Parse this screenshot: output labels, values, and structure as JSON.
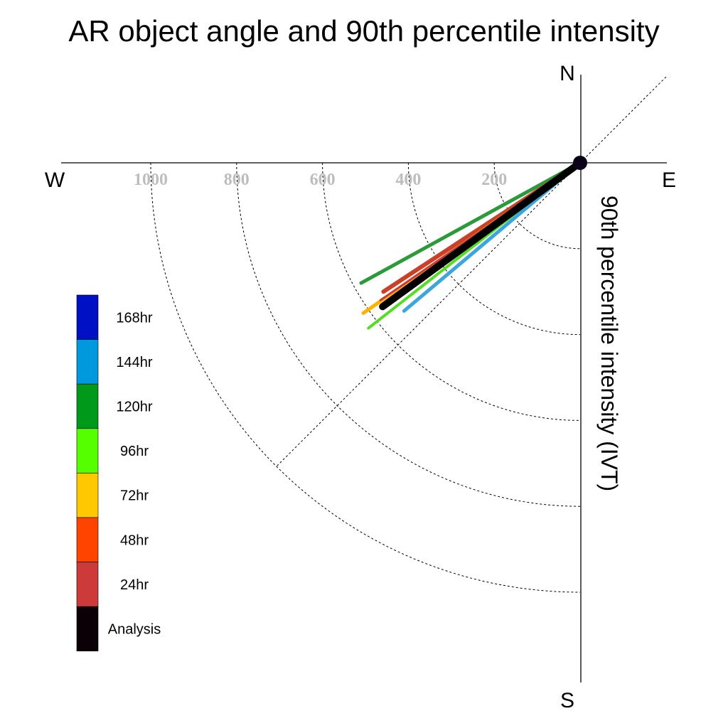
{
  "chart_data": {
    "type": "polar-vector",
    "title": "AR object angle and 90th percentile intensity",
    "axis_label": "90th percentile intensity (IVT)",
    "compass": {
      "north": "N",
      "south": "S",
      "east": "E",
      "west": "W"
    },
    "radial_ticks": [
      200,
      400,
      600,
      800,
      1000
    ],
    "rlim": [
      0,
      1000
    ],
    "grid": true,
    "legend_position": "left",
    "legend": [
      {
        "label": "168hr",
        "color": "#0010c4"
      },
      {
        "label": "144hr",
        "color": "#0099dd"
      },
      {
        "label": "120hr",
        "color": "#00991a"
      },
      {
        "label": "96hr",
        "color": "#55ff00"
      },
      {
        "label": "72hr",
        "color": "#ffc800"
      },
      {
        "label": "48hr",
        "color": "#ff4400"
      },
      {
        "label": "24hr",
        "color": "#cc3a3a"
      },
      {
        "label": "Analysis",
        "color": "#0b0006"
      }
    ],
    "series": [
      {
        "name": "120hr",
        "dx": -510,
        "dy": -280,
        "color": "#2a9a3a",
        "width": 5
      },
      {
        "name": "48hr",
        "dx": -458,
        "dy": -300,
        "color": "#c84128",
        "width": 6
      },
      {
        "name": "72hr",
        "dx": -505,
        "dy": -350,
        "color": "#ffb200",
        "width": 5
      },
      {
        "name": "24hr",
        "dx": -465,
        "dy": -320,
        "color": "#cc3a3a",
        "width": 3
      },
      {
        "name": "96hr",
        "dx": -493,
        "dy": -385,
        "color": "#55dd22",
        "width": 4
      },
      {
        "name": "144hr",
        "dx": -410,
        "dy": -345,
        "color": "#3aa6dd",
        "width": 5
      },
      {
        "name": "Analysis",
        "dx": -460,
        "dy": -335,
        "color": "#000000",
        "width": 10
      }
    ]
  }
}
